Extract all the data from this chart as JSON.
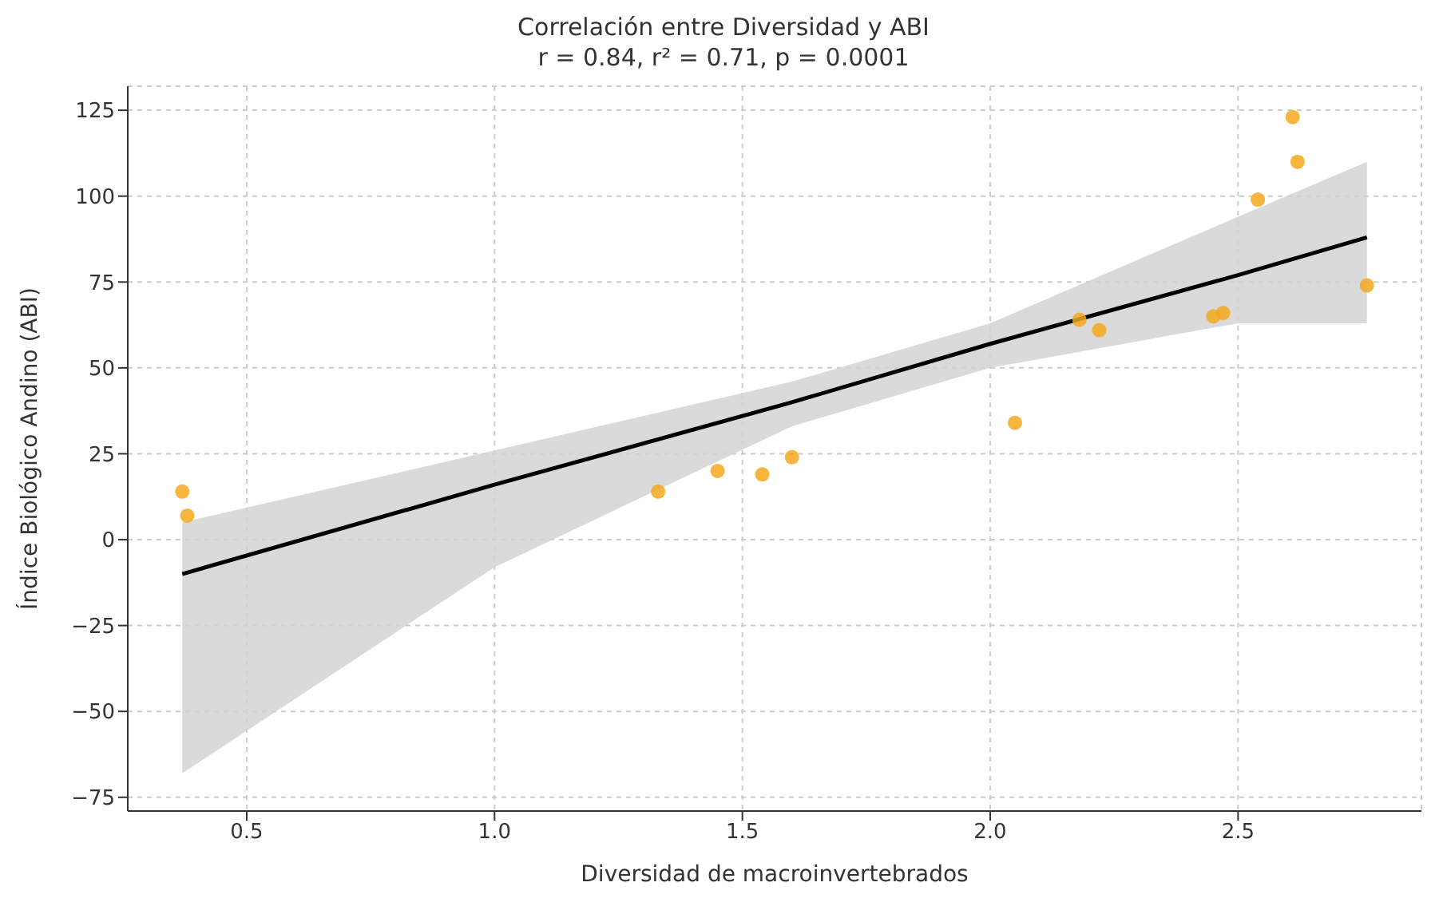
{
  "chart_data": {
    "type": "scatter",
    "title": "Correlación entre Diversidad y ABI",
    "subtitle": "r = 0.84, r² = 0.71, p = 0.0001",
    "xlabel": "Diversidad de macroinvertebrados",
    "ylabel": "Índice Biológico Andino (ABI)",
    "xlim": [
      0.26,
      2.87
    ],
    "xticks": [
      {
        "value": 0.5,
        "label": "0.5"
      },
      {
        "value": 1,
        "label": "1.0"
      },
      {
        "value": 1.5,
        "label": "1.5"
      },
      {
        "value": 2,
        "label": "2.0"
      },
      {
        "value": 2.5,
        "label": "2.5"
      }
    ],
    "ylim": [
      -79,
      132
    ],
    "yticks": [
      {
        "value": -75,
        "label": "−75"
      },
      {
        "value": -50,
        "label": "−50"
      },
      {
        "value": -25,
        "label": "−25"
      },
      0,
      25,
      50,
      75,
      100,
      125
    ],
    "grid": true,
    "series": [
      {
        "type": "line",
        "color": "#000000",
        "x": [
          0.37,
          1.0,
          1.6,
          2.0,
          2.5,
          2.76
        ],
        "marker": "none",
        "values": [
          -10,
          16,
          40,
          57,
          77,
          88
        ],
        "lower": [
          -68,
          -8,
          33,
          50,
          63,
          63
        ],
        "upper": [
          5,
          26,
          46,
          63,
          94,
          110
        ]
      },
      {
        "marker": "circle",
        "color": "#f5a81c",
        "x": [
          0.37,
          0.38,
          1.33,
          1.45,
          1.54,
          1.6,
          2.05,
          2.18,
          2.22,
          2.45,
          2.47,
          2.54,
          2.61,
          2.62,
          2.76
        ],
        "values": [
          14,
          7,
          14,
          20,
          19,
          24,
          34,
          64,
          61,
          65,
          66,
          99,
          123,
          110,
          74
        ]
      }
    ]
  }
}
